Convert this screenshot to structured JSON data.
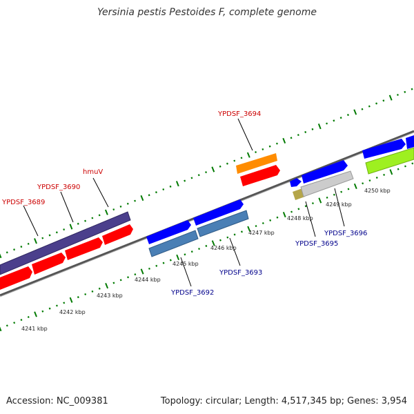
{
  "title": "Yersinia pestis Pestoides F, complete genome",
  "accession": "Accession: NC_009381",
  "summary": "Topology: circular; Length: 4,517,345 bp; Genes: 3,954",
  "colors": {
    "red": "#ff0000",
    "blue": "#0000ff",
    "steel": "#4a7fb5",
    "navy": "#4b3f8c",
    "orange": "#ff8c00",
    "grey": "#cccccc",
    "olive": "#b5a64a",
    "green": "#9ef020",
    "tick": "#007a00",
    "label_top": "#cc0000",
    "label_bottom": "#00008b"
  },
  "diagram": {
    "scale_labels": [
      "4241 kbp",
      "4242 kbp",
      "4243 kbp",
      "4244 kbp",
      "4245 kbp",
      "4246 kbp",
      "4247 kbp",
      "4248 kbp",
      "4249 kbp",
      "4250 kbp"
    ],
    "gene_labels_top": [
      "YPDSF_3689",
      "YPDSF_3690",
      "hmuV",
      "YPDSF_3694"
    ],
    "gene_labels_bottom": [
      "YPDSF_3692",
      "YPDSF_3693",
      "YPDSF_3695",
      "YPDSF_3696"
    ]
  }
}
